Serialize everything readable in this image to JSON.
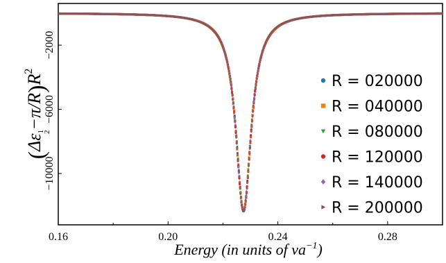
{
  "chart_data": {
    "type": "scatter",
    "title": "",
    "xlabel": "Energy (in units of va",
    "xlabel_sup": "−1",
    "xlabel_close": ")",
    "ylabel": {
      "open": "(",
      "delta": "Δε",
      "sub_num": "1",
      "sub_den": "2",
      "minus_pi": "−π/R",
      "close": ")",
      "r": "R",
      "sup": "2"
    },
    "xlim": [
      0.16,
      0.3
    ],
    "ylim": [
      -13200,
      600
    ],
    "xticks": [
      {
        "value": 0.16,
        "label": "0.16"
      },
      {
        "value": 0.2,
        "label": "0.20"
      },
      {
        "value": 0.24,
        "label": "0.24"
      },
      {
        "value": 0.28,
        "label": "0.28"
      }
    ],
    "yticks": [
      {
        "value": -2000,
        "label": "−2000"
      },
      {
        "value": -6000,
        "label": "−6000"
      },
      {
        "value": -10000,
        "label": "−10000"
      }
    ],
    "grid": false,
    "legend_position": "right",
    "curve_model": {
      "center": 0.2275,
      "depth": 12350,
      "halfwidth": 0.0034,
      "baseline": 0
    },
    "series": [
      {
        "name": "R = 020000",
        "marker": "circle",
        "color": "#1f77b4"
      },
      {
        "name": "R = 040000",
        "marker": "square",
        "color": "#ff7f0e"
      },
      {
        "name": "R = 080000",
        "marker": "triangle-down",
        "color": "#2ca02c"
      },
      {
        "name": "R = 120000",
        "marker": "circle",
        "color": "#d62728"
      },
      {
        "name": "R = 140000",
        "marker": "diamond",
        "color": "#9467bd"
      },
      {
        "name": "R = 200000",
        "marker": "triangle-right",
        "color": "#8c564b"
      }
    ]
  }
}
